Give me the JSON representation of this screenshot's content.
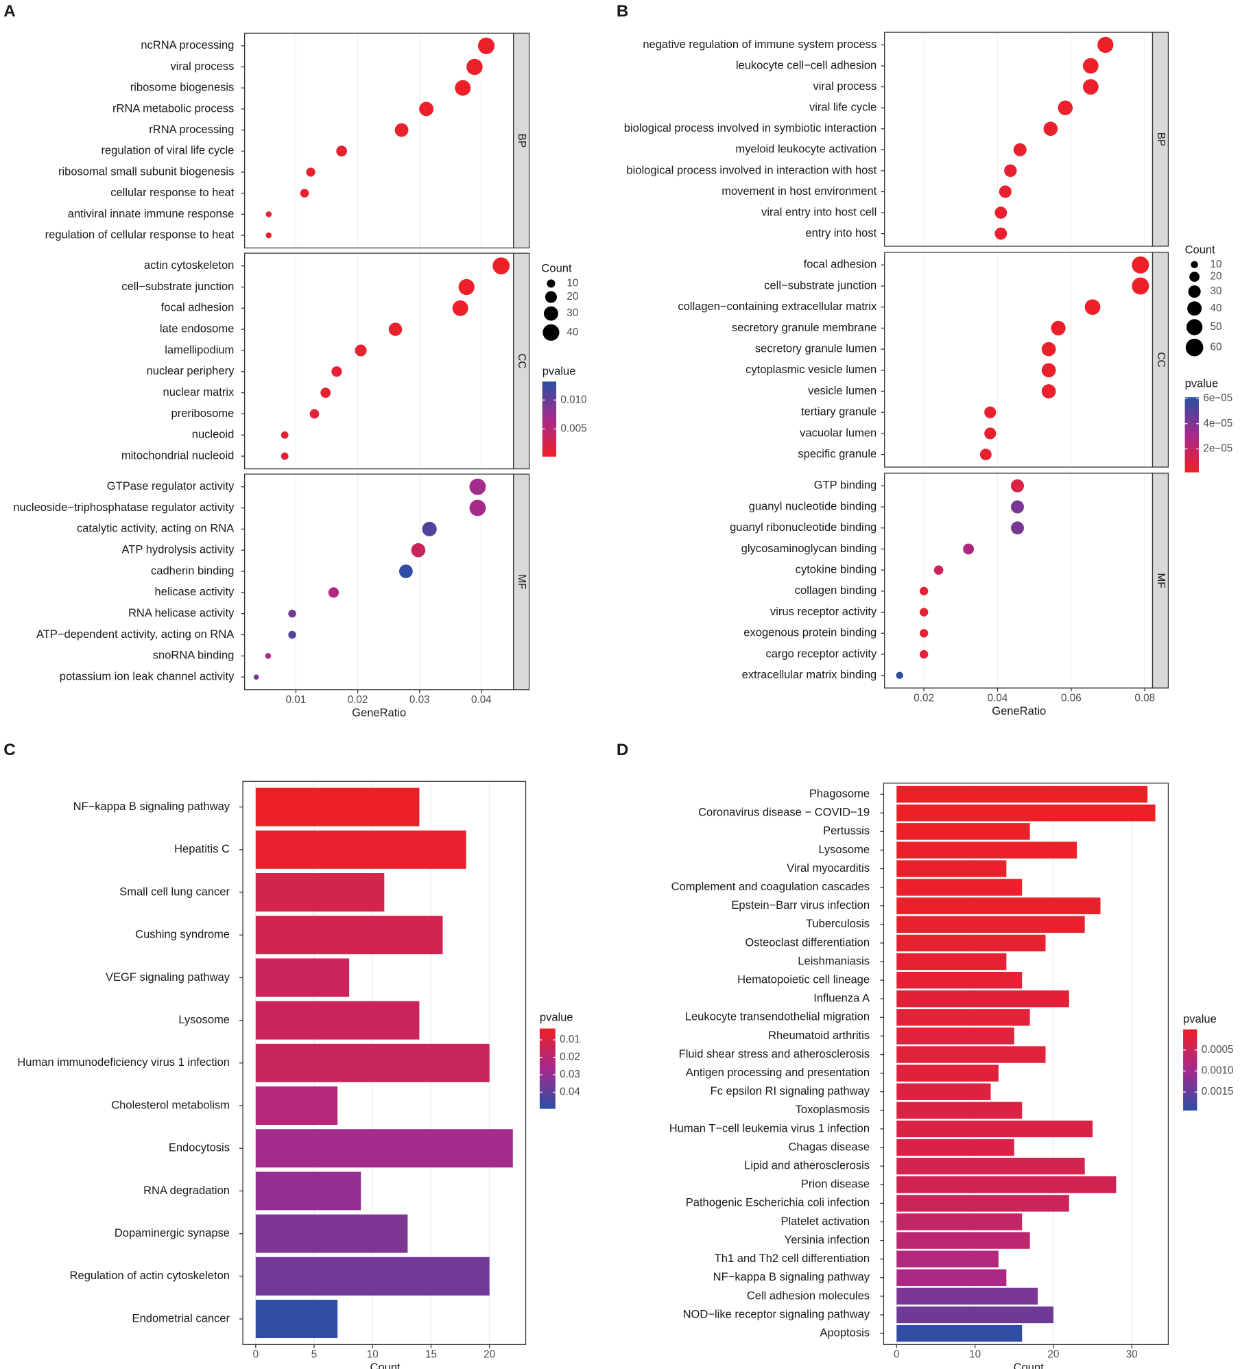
{
  "chart_data": [
    {
      "type": "dot",
      "panel_label": "A",
      "x_label": "GeneRatio",
      "xlim": [
        0.0017,
        0.0452
      ],
      "xticks": [
        0.01,
        0.02,
        0.03,
        0.04
      ],
      "grid": true,
      "facets": [
        {
          "name": "BP",
          "terms": [
            "ncRNA processing",
            "viral process",
            "ribosome biogenesis",
            "rRNA metabolic process",
            "rRNA processing",
            "regulation of viral life cycle",
            "ribosomal small subunit biogenesis",
            "cellular response to heat",
            "antiviral innate immune response",
            "regulation of cellular response to heat"
          ],
          "values": [
            0.0408,
            0.0389,
            0.037,
            0.0311,
            0.0271,
            0.0174,
            0.0124,
            0.0114,
            0.0056,
            0.0056
          ],
          "counts": [
            40,
            38,
            36,
            30,
            27,
            17,
            12,
            11,
            5,
            5
          ],
          "pvalues": [
            0.0003,
            0.0004,
            0.0003,
            0.0005,
            0.0006,
            0.0008,
            0.0009,
            0.0007,
            0.001,
            0.0008
          ]
        },
        {
          "name": "CC",
          "terms": [
            "actin cytoskeleton",
            "cell−substrate junction",
            "focal adhesion",
            "late endosome",
            "lamellipodium",
            "nuclear periphery",
            "nuclear matrix",
            "preribosome",
            "nucleoid",
            "mitochondrial nucleoid"
          ],
          "values": [
            0.0432,
            0.0376,
            0.0366,
            0.0261,
            0.0205,
            0.0166,
            0.0148,
            0.013,
            0.0082,
            0.0082
          ],
          "counts": [
            42,
            37,
            36,
            26,
            20,
            16,
            15,
            13,
            8,
            8
          ],
          "pvalues": [
            0.0002,
            0.0004,
            0.0005,
            0.0006,
            0.0008,
            0.0009,
            0.001,
            0.0012,
            0.0011,
            0.0011
          ]
        },
        {
          "name": "MF",
          "terms": [
            "GTPase regulator activity",
            "nucleoside−triphosphatase regulator activity",
            "catalytic activity, acting on RNA",
            "ATP hydrolysis activity",
            "cadherin binding",
            "helicase activity",
            "RNA helicase activity",
            "ATP−dependent activity, acting on RNA",
            "snoRNA binding",
            "potassium ion leak channel activity"
          ],
          "values": [
            0.0394,
            0.0394,
            0.0316,
            0.0298,
            0.0278,
            0.0161,
            0.0094,
            0.0094,
            0.0055,
            0.0036
          ],
          "counts": [
            39,
            39,
            31,
            29,
            27,
            16,
            9,
            9,
            5,
            4
          ],
          "pvalues": [
            0.0068,
            0.0066,
            0.0112,
            0.0035,
            0.013,
            0.0058,
            0.0095,
            0.011,
            0.0062,
            0.009
          ]
        }
      ],
      "size_legend": {
        "title": "Count",
        "values": [
          10,
          20,
          30,
          40
        ]
      },
      "color_legend": {
        "title": "pvalue",
        "lim": [
          0.0002,
          0.0132
        ],
        "ticks": [
          0.005,
          {
            "value": 0.01,
            "label": "0.010"
          }
        ],
        "colors": [
          "#ee2027",
          "#a52a8c",
          "#2b4ea3"
        ],
        "low_at_top": false
      }
    },
    {
      "type": "dot",
      "panel_label": "B",
      "x_label": "GeneRatio",
      "xlim": [
        0.0093,
        0.0821
      ],
      "xticks": [
        0.02,
        0.04,
        0.06,
        0.08
      ],
      "grid": true,
      "facets": [
        {
          "name": "BP",
          "terms": [
            "negative regulation of immune system process",
            "leukocyte cell−cell adhesion",
            "viral process",
            "viral life cycle",
            "biological process involved in symbiotic interaction",
            "myeloid leukocyte activation",
            "biological process involved in interaction with host",
            "movement in host environment",
            "viral entry into host cell",
            "entry into host"
          ],
          "values": [
            0.0693,
            0.0653,
            0.0653,
            0.0584,
            0.0544,
            0.0461,
            0.0435,
            0.0421,
            0.0409,
            0.0409
          ],
          "counts": [
            50,
            47,
            47,
            42,
            39,
            33,
            31,
            30,
            29,
            29
          ],
          "pvalues": [
            2e-06,
            2e-06,
            3e-06,
            3e-06,
            3e-06,
            4e-06,
            4e-06,
            4e-06,
            4e-06,
            4e-06
          ]
        },
        {
          "name": "CC",
          "terms": [
            "focal adhesion",
            "cell−substrate junction",
            "collagen−containing extracellular matrix",
            "secretory granule membrane",
            "secretory granule lumen",
            "cytoplasmic vesicle lumen",
            "vesicle lumen",
            "tertiary granule",
            "vacuolar lumen",
            "specific granule"
          ],
          "values": [
            0.0788,
            0.0788,
            0.0658,
            0.0565,
            0.0539,
            0.0539,
            0.0539,
            0.038,
            0.038,
            0.0368
          ],
          "counts": [
            57,
            57,
            47,
            41,
            39,
            39,
            39,
            27,
            27,
            26
          ],
          "pvalues": [
            2e-06,
            2e-06,
            2e-06,
            3e-06,
            3e-06,
            3e-06,
            3e-06,
            4e-06,
            4e-06,
            4e-06
          ]
        },
        {
          "name": "MF",
          "terms": [
            "GTP binding",
            "guanyl nucleotide binding",
            "guanyl ribonucleotide binding",
            "glycosaminoglycan binding",
            "cytokine binding",
            "collagen binding",
            "virus receptor activity",
            "exogenous protein binding",
            "cargo receptor activity",
            "extracellular matrix binding"
          ],
          "values": [
            0.0454,
            0.0454,
            0.0454,
            0.0321,
            0.024,
            0.02,
            0.02,
            0.02,
            0.02,
            0.0134
          ],
          "counts": [
            33,
            33,
            33,
            23,
            17,
            14,
            14,
            14,
            14,
            10
          ],
          "pvalues": [
            1e-05,
            4.2e-05,
            4.2e-05,
            2.8e-05,
            1.6e-05,
            5e-06,
            5e-06,
            5e-06,
            6e-06,
            6e-05
          ]
        }
      ],
      "size_legend": {
        "title": "Count",
        "values": [
          10,
          20,
          30,
          40,
          50,
          60
        ]
      },
      "color_legend": {
        "title": "pvalue",
        "lim": [
          1.4e-06,
          6.1e-05
        ],
        "ticks": [
          {
            "value": 6e-05,
            "label": "6e−05"
          },
          {
            "value": 4e-05,
            "label": "4e−05"
          },
          {
            "value": 2e-05,
            "label": "2e−05"
          }
        ],
        "colors": [
          "#ee2027",
          "#a52a8c",
          "#2b4ea3"
        ],
        "low_at_top": false
      }
    },
    {
      "type": "barh",
      "panel_label": "C",
      "x_label": "Count",
      "xlim": [
        -1.1,
        23.1
      ],
      "xticks": [
        0,
        5,
        10,
        15,
        20
      ],
      "grid": true,
      "categories": [
        "NF−kappa B signaling pathway",
        "Hepatitis C",
        "Small cell lung cancer",
        "Cushing syndrome",
        "VEGF signaling pathway",
        "Lysosome",
        "Human immunodeficiency virus 1 infection",
        "Cholesterol metabolism",
        "Endocytosis",
        "RNA degradation",
        "Dopaminergic synapse",
        "Regulation of actin cytoskeleton",
        "Endometrial cancer"
      ],
      "values": [
        14,
        18,
        11,
        16,
        8,
        14,
        20,
        7,
        22,
        9,
        13,
        20,
        7
      ],
      "pvalues": [
        0.004,
        0.005,
        0.012,
        0.013,
        0.015,
        0.015,
        0.016,
        0.022,
        0.027,
        0.03,
        0.034,
        0.036,
        0.049
      ],
      "color_legend": {
        "title": "pvalue",
        "lim": [
          0.0035,
          0.0495
        ],
        "ticks": [
          0.01,
          0.02,
          0.03,
          0.04
        ],
        "colors": [
          "#ee2027",
          "#a52a8c",
          "#2b4ea3"
        ],
        "low_at_top": true
      }
    },
    {
      "type": "barh",
      "panel_label": "D",
      "x_label": "Count",
      "xlim": [
        -1.65,
        34.65
      ],
      "xticks": [
        0,
        10,
        20,
        30
      ],
      "grid": true,
      "categories": [
        "Phagosome",
        "Coronavirus disease − COVID−19",
        "Pertussis",
        "Lysosome",
        "Viral myocarditis",
        "Complement and coagulation cascades",
        "Epstein−Barr virus infection",
        "Tuberculosis",
        "Osteoclast differentiation",
        "Leishmaniasis",
        "Hematopoietic cell lineage",
        "Influenza A",
        "Leukocyte transendothelial migration",
        "Rheumatoid arthritis",
        "Fluid shear stress and atherosclerosis",
        "Antigen processing and presentation",
        "Fc epsilon RI signaling pathway",
        "Toxoplasmosis",
        "Human T−cell leukemia virus 1 infection",
        "Chagas disease",
        "Lipid and atherosclerosis",
        "Prion disease",
        "Pathogenic Escherichia coli infection",
        "Platelet activation",
        "Yersinia infection",
        "Th1 and Th2 cell differentiation",
        "NF−kappa B signaling pathway",
        "Cell adhesion molecules",
        "NOD−like receptor signaling pathway",
        "Apoptosis"
      ],
      "values": [
        32,
        33,
        17,
        23,
        14,
        16,
        26,
        24,
        19,
        14,
        16,
        22,
        17,
        15,
        19,
        13,
        12,
        16,
        25,
        15,
        24,
        28,
        22,
        16,
        17,
        13,
        14,
        18,
        20,
        16
      ],
      "pvalues": [
        2e-05,
        2e-05,
        3e-05,
        4e-05,
        5e-05,
        6e-05,
        7e-05,
        8e-05,
        0.0001,
        0.00012,
        0.00014,
        0.00015,
        0.00017,
        0.00019,
        0.0002,
        0.00022,
        0.00025,
        0.00027,
        0.0003,
        0.00032,
        0.00038,
        0.00042,
        0.00048,
        0.0006,
        0.0007,
        0.0008,
        0.0009,
        0.0013,
        0.0014,
        0.0019
      ],
      "color_legend": {
        "title": "pvalue",
        "lim": [
          1e-05,
          0.00194
        ],
        "ticks": [
          0.0005,
          {
            "value": 0.001,
            "label": "0.0010"
          },
          0.0015
        ],
        "colors": [
          "#ee2027",
          "#a52a8c",
          "#2b4ea3"
        ],
        "low_at_top": true
      }
    }
  ]
}
